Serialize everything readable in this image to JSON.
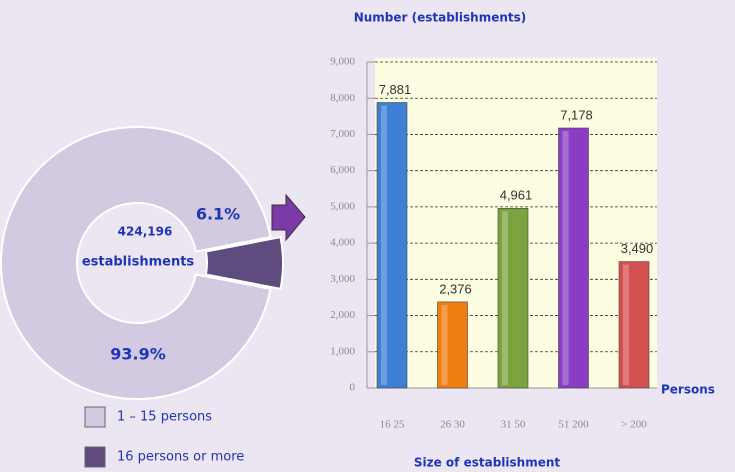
{
  "chart_data": [
    {
      "type": "donut",
      "center_text": [
        "424,196",
        "establishments"
      ],
      "categories": [
        "1 – 15 persons",
        "16 persons or more"
      ],
      "values": [
        93.9,
        6.1
      ],
      "value_labels": [
        "93.9%",
        "6.1%"
      ],
      "colors": [
        "#d3cae2",
        "#5e4b80"
      ]
    },
    {
      "type": "bar",
      "title": "Number (establishments)",
      "x_label": "Size of establishment",
      "x_unit": "Persons",
      "categories": [
        "16 25",
        "26 30",
        "31 50",
        "51 200",
        "> 200"
      ],
      "values": [
        7881,
        2376,
        4961,
        7178,
        3490
      ],
      "value_labels": [
        "7,881",
        "2,376",
        "4,961",
        "7,178",
        "3,490"
      ],
      "colors": [
        "#3d7fd3",
        "#f07d12",
        "#7ca43e",
        "#8b3cc4",
        "#d2504f"
      ],
      "ylim": [
        0,
        9000
      ],
      "yticks": [
        0,
        {
          "value": 1000,
          "label": "1,000"
        },
        {
          "value": 2000,
          "label": "2,000"
        },
        {
          "value": 3000,
          "label": "3,000"
        },
        {
          "value": 4000,
          "label": "4,000"
        },
        {
          "value": 5000,
          "label": "5,000"
        },
        {
          "value": 6000,
          "label": "6,000"
        },
        {
          "value": 7000,
          "label": "7,000"
        },
        {
          "value": 8000,
          "label": "8,000"
        },
        {
          "value": 9000,
          "label": "9,000"
        }
      ],
      "grid": true
    }
  ]
}
